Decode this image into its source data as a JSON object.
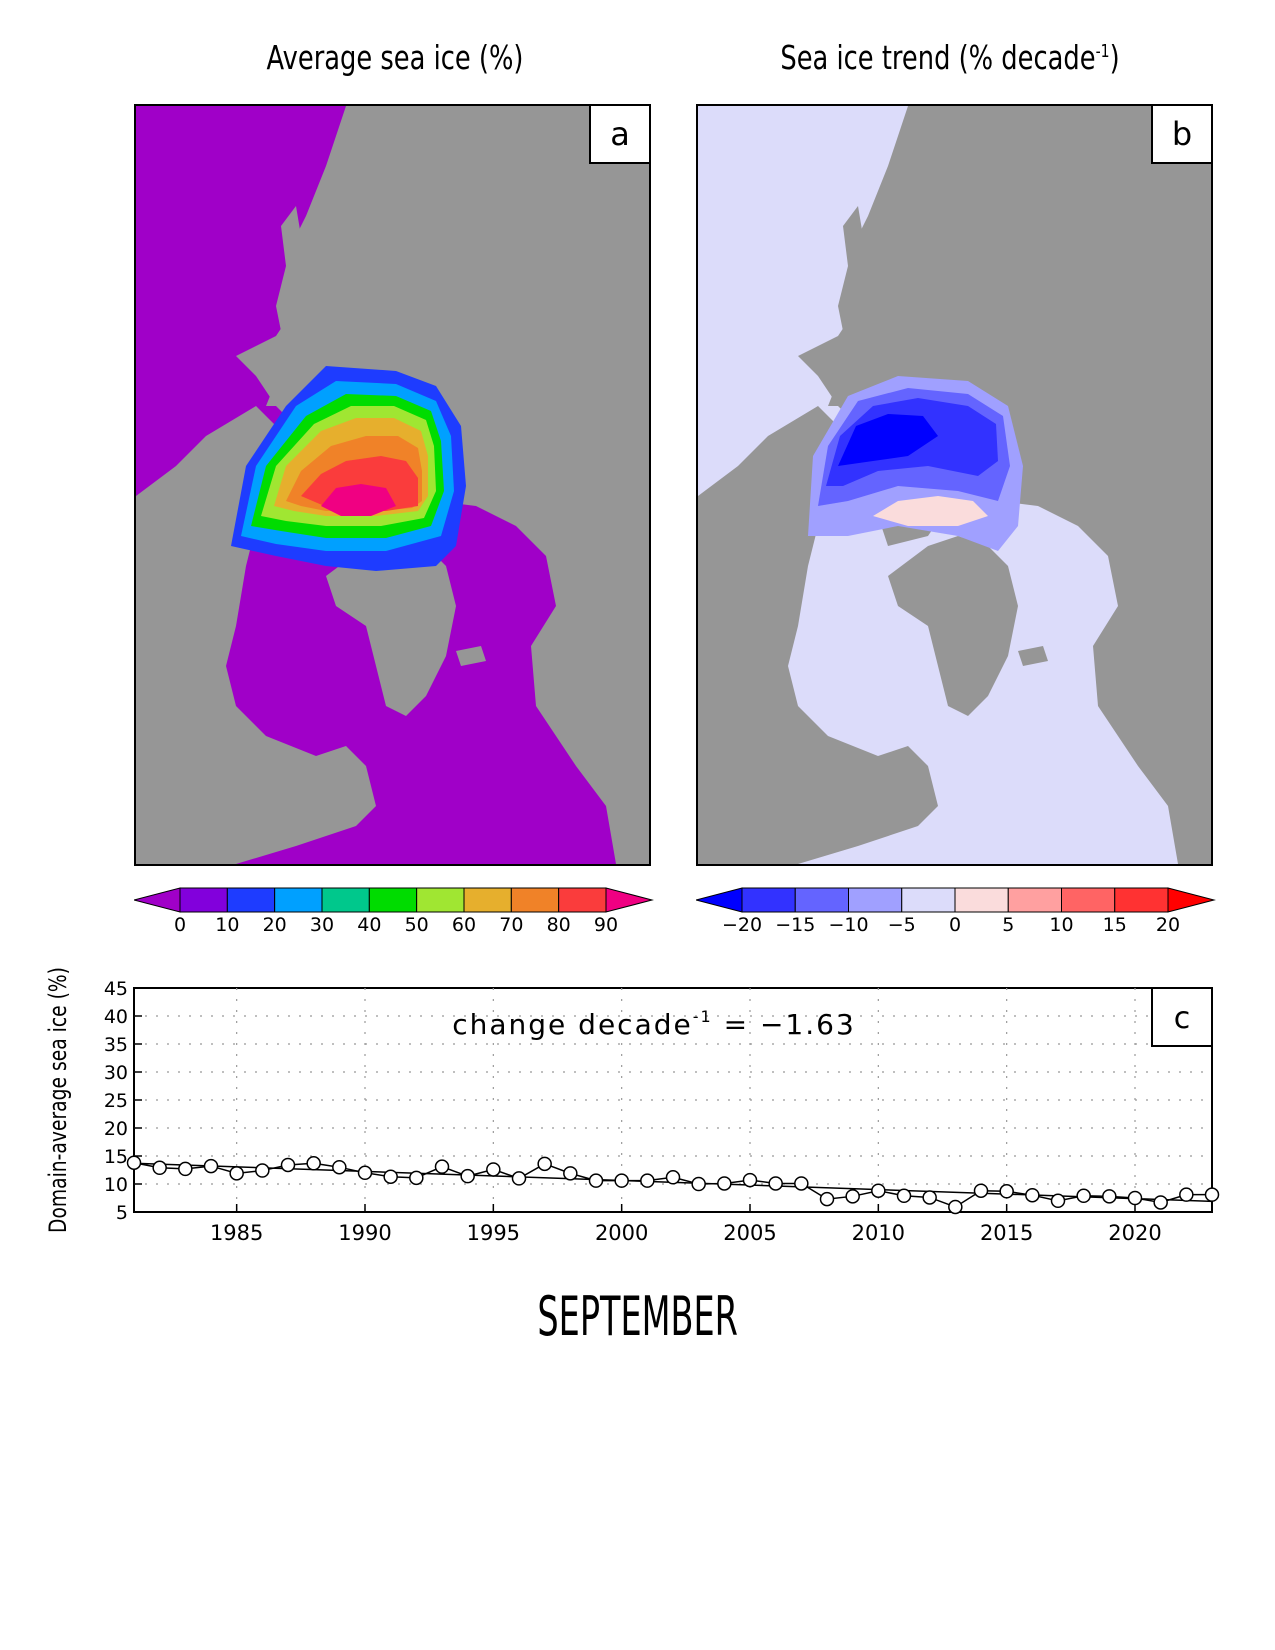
{
  "panel_a": {
    "title": "Average sea ice (%)",
    "letter": "a",
    "colorbar_ticks": [
      "0",
      "10",
      "20",
      "30",
      "40",
      "50",
      "60",
      "70",
      "80",
      "90"
    ],
    "colorbar_colors": [
      "#a000c8",
      "#8200dc",
      "#1e3cff",
      "#00a0ff",
      "#00c88c",
      "#00dc00",
      "#a0e632",
      "#e6af2d",
      "#f08228",
      "#fa3c3c",
      "#f00082"
    ]
  },
  "panel_b": {
    "title_main": "Sea ice trend (% decade",
    "title_sup": "-1",
    "title_end": ")",
    "letter": "b",
    "colorbar_ticks": [
      "−20",
      "−15",
      "−10",
      "−5",
      "0",
      "5",
      "10",
      "15",
      "20"
    ],
    "colorbar_colors": [
      "#0000ff",
      "#3232ff",
      "#6464ff",
      "#a0a0ff",
      "#dcdcfa",
      "#fadcdc",
      "#ffa0a0",
      "#ff6464",
      "#ff3232",
      "#ff0000"
    ]
  },
  "map_colors": {
    "land": "#969696",
    "open_ocean_a": "#a000c8",
    "neutral_trend_b": "#dcdcfa"
  },
  "panel_c": {
    "letter": "c",
    "annotation_main": "change decade",
    "annotation_sup": "-1",
    "annotation_end": " = −1.63"
  },
  "month_label": "SEPTEMBER",
  "chart_data": {
    "type": "line",
    "ylabel": "Domain-average sea ice (%)",
    "ylim": [
      5,
      45
    ],
    "xlim": [
      1981,
      2023
    ],
    "yticks": [
      5,
      10,
      15,
      20,
      25,
      30,
      35,
      40,
      45
    ],
    "xticks": [
      1985,
      1990,
      1995,
      2000,
      2005,
      2010,
      2015,
      2020
    ],
    "grid": true,
    "trend_per_decade": -1.63,
    "trend_line": {
      "x": [
        1981,
        2023
      ],
      "y": [
        13.7,
        6.9
      ]
    },
    "series": [
      {
        "x": [
          1981,
          1982,
          1983,
          1984,
          1985,
          1986,
          1987,
          1988,
          1989,
          1990,
          1991,
          1992,
          1993,
          1994,
          1995,
          1996,
          1997,
          1998,
          1999,
          2000,
          2001,
          2002,
          2003,
          2004,
          2005,
          2006,
          2007,
          2008,
          2009,
          2010,
          2011,
          2012,
          2013,
          2014,
          2015,
          2016,
          2017,
          2018,
          2019,
          2020,
          2021,
          2022,
          2023
        ],
        "values": [
          13.8,
          12.9,
          12.7,
          13.2,
          11.9,
          12.4,
          13.4,
          13.7,
          13.0,
          12.0,
          11.3,
          11.1,
          13.1,
          11.4,
          12.6,
          11.0,
          13.6,
          11.9,
          10.6,
          10.6,
          10.6,
          11.2,
          10.0,
          10.1,
          10.7,
          10.1,
          10.1,
          7.3,
          7.8,
          8.8,
          7.9,
          7.6,
          5.9,
          8.8,
          8.7,
          8.0,
          7.0,
          7.9,
          7.8,
          7.5,
          6.7,
          8.1,
          8.1
        ]
      }
    ]
  }
}
